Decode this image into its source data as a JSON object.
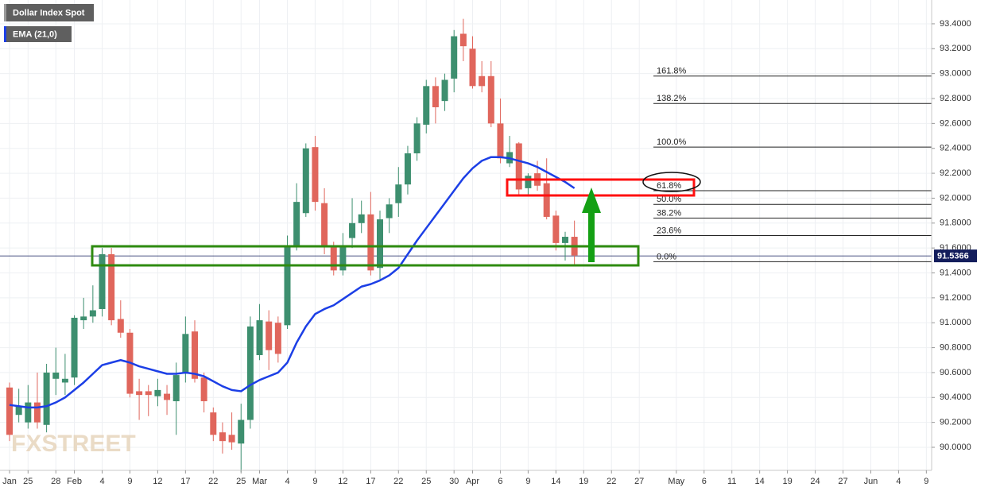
{
  "chart_data": {
    "type": "candlestick",
    "title": "Dollar Index Spot",
    "watermark": "FXSTREET",
    "categories": [
      "Jan",
      null,
      "25",
      null,
      null,
      "28",
      null,
      "Feb",
      null,
      null,
      "4",
      null,
      null,
      "9",
      null,
      null,
      "12",
      null,
      null,
      "17",
      null,
      null,
      "22",
      null,
      null,
      "25",
      null,
      "Mar",
      null,
      null,
      "4",
      null,
      null,
      "9",
      null,
      null,
      "12",
      null,
      null,
      "17",
      null,
      null,
      "22",
      null,
      null,
      "25",
      null,
      null,
      "30",
      null,
      "Apr",
      null,
      null,
      "6",
      null,
      null,
      "9",
      null,
      null,
      "14",
      null,
      null,
      "19",
      null,
      null,
      "22",
      null,
      null,
      "27",
      null,
      null,
      null,
      "May",
      null,
      null,
      "6",
      null,
      null,
      "11",
      null,
      null,
      "14",
      null,
      null,
      "19",
      null,
      null,
      "24",
      null,
      null,
      "27",
      null,
      null,
      "Jun",
      null,
      null,
      "4",
      null,
      null,
      "9"
    ],
    "open": [
      90.48,
      90.26,
      90.2,
      90.36,
      90.18,
      90.55,
      90.52,
      90.56,
      91.02,
      91.05,
      91.11,
      91.55,
      91.03,
      90.92,
      90.45,
      90.45,
      90.41,
      90.43,
      90.37,
      90.59,
      90.93,
      90.56,
      90.28,
      90.12,
      90.1,
      90.03,
      90.22,
      90.74,
      91.01,
      91.0,
      90.98,
      91.62,
      91.88,
      92.41,
      91.96,
      91.62,
      91.42,
      91.68,
      91.8,
      91.87,
      91.44,
      91.84,
      91.96,
      92.11,
      92.36,
      92.59,
      92.9,
      92.78,
      92.96,
      93.32,
      93.2,
      92.98,
      92.98,
      92.6,
      92.28,
      92.44,
      92.08,
      92.2,
      92.12,
      91.86,
      91.64,
      91.69,
      null,
      null,
      null,
      null,
      null,
      null,
      null,
      null,
      null,
      null,
      null,
      null,
      null,
      null,
      null,
      null,
      null,
      null,
      null,
      null,
      null,
      null,
      null,
      null,
      null,
      null,
      null,
      null,
      null,
      null,
      null,
      null,
      null,
      null,
      null,
      null,
      null,
      null
    ],
    "high": [
      90.52,
      90.47,
      90.5,
      90.6,
      90.67,
      90.8,
      90.75,
      91.06,
      91.2,
      91.3,
      91.6,
      91.6,
      91.18,
      90.95,
      90.55,
      90.5,
      90.55,
      90.5,
      90.68,
      91.05,
      91.02,
      90.6,
      90.32,
      90.2,
      90.28,
      90.35,
      91.05,
      91.15,
      91.1,
      91.05,
      91.7,
      92.12,
      92.44,
      92.5,
      92.08,
      91.65,
      91.72,
      92.0,
      91.98,
      92.05,
      91.9,
      92.0,
      92.25,
      92.42,
      92.65,
      92.95,
      92.97,
      93.0,
      93.35,
      93.44,
      93.3,
      93.1,
      93.1,
      92.8,
      92.5,
      92.45,
      92.2,
      92.3,
      92.32,
      91.9,
      91.73,
      91.82,
      null,
      null,
      null,
      null,
      null,
      null,
      null,
      null,
      null,
      null,
      null,
      null,
      null,
      null,
      null,
      null,
      null,
      null,
      null,
      null,
      null,
      null,
      null,
      null,
      null,
      null,
      null,
      null,
      null,
      null,
      null,
      null,
      null,
      null,
      null,
      null,
      null,
      null
    ],
    "low": [
      90.05,
      90.2,
      90.15,
      90.15,
      90.12,
      90.42,
      90.42,
      90.5,
      90.95,
      91.0,
      91.05,
      90.98,
      90.88,
      90.4,
      90.22,
      90.25,
      90.33,
      90.26,
      90.1,
      90.52,
      90.52,
      90.28,
      90.05,
      89.95,
      89.98,
      89.8,
      90.15,
      90.7,
      90.62,
      90.68,
      90.95,
      91.58,
      91.85,
      91.9,
      91.55,
      91.38,
      91.38,
      91.6,
      91.72,
      91.38,
      91.35,
      91.72,
      91.85,
      92.03,
      92.3,
      92.52,
      92.6,
      92.7,
      92.85,
      93.1,
      92.88,
      92.85,
      92.57,
      92.28,
      92.25,
      92.02,
      92.02,
      92.06,
      91.83,
      91.58,
      91.5,
      91.47,
      null,
      null,
      null,
      null,
      null,
      null,
      null,
      null,
      null,
      null,
      null,
      null,
      null,
      null,
      null,
      null,
      null,
      null,
      null,
      null,
      null,
      null,
      null,
      null,
      null,
      null,
      null,
      null,
      null,
      null,
      null,
      null,
      null,
      null,
      null,
      null,
      null,
      null
    ],
    "close": [
      90.1,
      90.33,
      90.36,
      90.2,
      90.6,
      90.6,
      90.55,
      91.04,
      91.05,
      91.1,
      91.55,
      91.02,
      90.92,
      90.43,
      90.42,
      90.42,
      90.46,
      90.38,
      90.58,
      90.91,
      90.55,
      90.37,
      90.1,
      90.05,
      90.04,
      90.22,
      90.97,
      91.02,
      90.78,
      90.75,
      91.62,
      91.97,
      92.4,
      91.97,
      91.62,
      91.42,
      91.62,
      91.8,
      91.87,
      91.42,
      91.83,
      91.95,
      92.11,
      92.36,
      92.6,
      92.9,
      92.73,
      92.95,
      93.3,
      93.22,
      92.9,
      92.9,
      92.6,
      92.32,
      92.37,
      92.07,
      92.18,
      92.1,
      91.85,
      91.64,
      91.69,
      91.54,
      null,
      null,
      null,
      null,
      null,
      null,
      null,
      null,
      null,
      null,
      null,
      null,
      null,
      null,
      null,
      null,
      null,
      null,
      null,
      null,
      null,
      null,
      null,
      null,
      null,
      null,
      null,
      null,
      null,
      null,
      null,
      null,
      null,
      null,
      null,
      null,
      null,
      null
    ],
    "up_color": "#3d8f6f",
    "down_color": "#e0665c",
    "series": [
      {
        "name": "EMA (21,0)",
        "color": "#1c3fe6",
        "values": [
          90.34,
          90.33,
          90.32,
          90.32,
          90.33,
          90.36,
          90.4,
          90.46,
          90.52,
          90.59,
          90.66,
          90.68,
          90.7,
          90.68,
          90.65,
          90.63,
          90.61,
          90.59,
          90.59,
          90.6,
          90.59,
          90.57,
          90.53,
          90.49,
          90.46,
          90.45,
          90.5,
          90.54,
          90.57,
          90.6,
          90.68,
          90.84,
          90.97,
          91.07,
          91.11,
          91.14,
          91.19,
          91.24,
          91.29,
          91.31,
          91.34,
          91.38,
          91.44,
          91.55,
          91.66,
          91.76,
          91.86,
          91.96,
          92.06,
          92.16,
          92.24,
          92.3,
          92.33,
          92.33,
          92.32,
          92.3,
          92.28,
          92.25,
          92.21,
          92.17,
          92.13,
          92.08,
          null,
          null,
          null,
          null,
          null,
          null,
          null,
          null,
          null,
          null,
          null,
          null,
          null,
          null,
          null,
          null,
          null,
          null,
          null,
          null,
          null,
          null,
          null,
          null,
          null,
          null,
          null,
          null,
          null,
          null,
          null,
          null,
          null,
          null,
          null,
          null,
          null,
          null
        ]
      }
    ],
    "ylim": [
      89.815,
      93.591
    ],
    "yticks": [
      {
        "value": 90.0,
        "label": "90.0000"
      },
      {
        "value": 90.2,
        "label": "90.2000"
      },
      {
        "value": 90.4,
        "label": "90.4000"
      },
      {
        "value": 90.6,
        "label": "90.6000"
      },
      {
        "value": 90.8,
        "label": "90.8000"
      },
      {
        "value": 91.0,
        "label": "91.0000"
      },
      {
        "value": 91.2,
        "label": "91.2000"
      },
      {
        "value": 91.4,
        "label": "91.4000"
      },
      {
        "value": 91.6,
        "label": "91.6000"
      },
      {
        "value": 91.8,
        "label": "91.8000"
      },
      {
        "value": 92.0,
        "label": "92.0000"
      },
      {
        "value": 92.2,
        "label": "92.2000"
      },
      {
        "value": 92.4,
        "label": "92.4000"
      },
      {
        "value": 92.6,
        "label": "92.6000"
      },
      {
        "value": 92.8,
        "label": "92.8000"
      },
      {
        "value": 93.0,
        "label": "93.0000"
      },
      {
        "value": 93.2,
        "label": "93.2000"
      },
      {
        "value": 93.4,
        "label": "93.4000"
      }
    ],
    "grid": true,
    "last_price": {
      "value": 91.5366,
      "label": "91.5366"
    },
    "last_price_color": "#131d5c",
    "fib_levels": [
      {
        "label": "161.8%",
        "value": 92.98
      },
      {
        "label": "138.2%",
        "value": 92.76
      },
      {
        "label": "100.0%",
        "value": 92.41
      },
      {
        "label": "61.8%",
        "value": 92.06
      },
      {
        "label": "50.0%",
        "value": 91.95
      },
      {
        "label": "38.2%",
        "value": 91.84
      },
      {
        "label": "23.6%",
        "value": 91.7
      },
      {
        "label": "0.0%",
        "value": 91.49
      }
    ]
  }
}
